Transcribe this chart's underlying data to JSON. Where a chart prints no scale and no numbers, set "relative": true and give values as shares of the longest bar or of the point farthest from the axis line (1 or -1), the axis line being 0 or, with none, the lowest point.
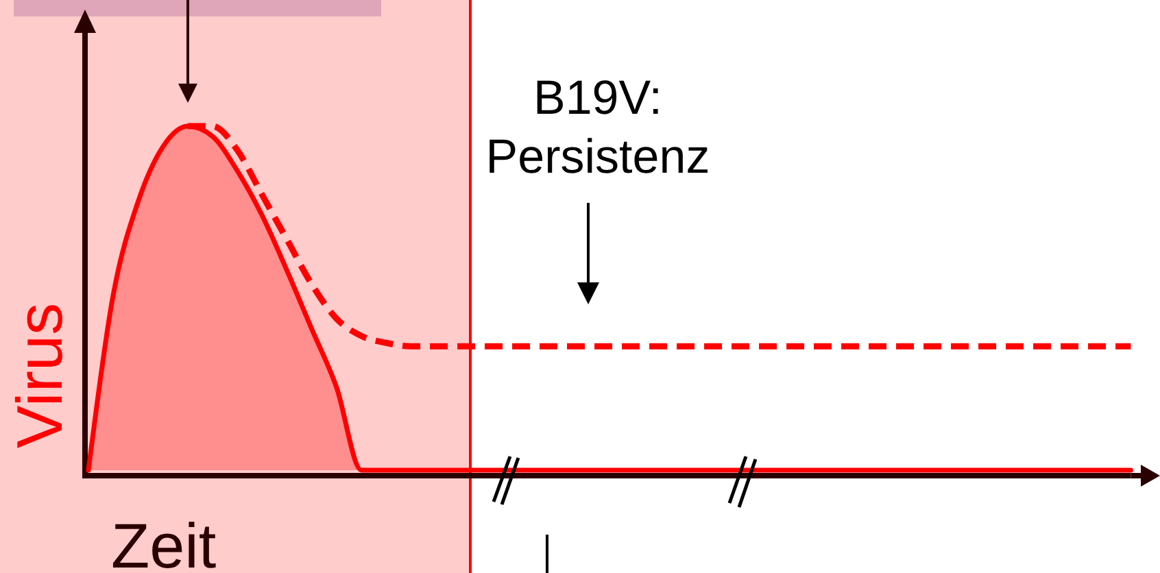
{
  "chart_data": {
    "type": "area",
    "xlabel": "Zeit",
    "ylabel": "Virus",
    "relative": true,
    "categories": [
      null,
      null,
      null,
      null,
      null,
      null,
      null,
      null,
      null,
      null,
      null,
      null,
      null,
      null,
      null,
      null,
      null,
      null,
      null,
      null,
      null,
      null,
      null,
      null,
      null,
      null,
      null,
      null,
      null,
      null,
      null,
      null,
      null,
      null,
      null,
      null,
      null,
      null,
      null,
      null,
      null,
      null,
      null
    ],
    "series": [
      {
        "type": "area",
        "color": "#ff0000",
        "values": [
          0,
          0.51,
          0.78,
          0.94,
          1,
          0.97,
          0.87,
          0.74,
          0.58,
          0.41,
          0.24,
          0,
          0,
          0,
          0,
          0,
          0,
          0,
          0,
          0,
          0,
          0,
          0,
          0,
          0,
          0,
          0,
          0,
          0,
          0,
          0,
          0,
          0,
          0,
          0,
          0,
          0,
          0,
          0,
          0,
          0,
          0,
          0
        ]
      },
      {
        "type": "line",
        "color": "#ff0000",
        "line_style": "dashed",
        "values": [
          null,
          null,
          null,
          null,
          1,
          1,
          0.93,
          0.8,
          0.67,
          0.54,
          0.44,
          0.39,
          0.37,
          0.36,
          0.36,
          0.36,
          0.36,
          0.36,
          0.36,
          0.36,
          0.36,
          0.36,
          0.36,
          0.36,
          0.36,
          0.36,
          0.36,
          0.36,
          0.36,
          0.36,
          0.36,
          0.36,
          0.36,
          0.36,
          0.36,
          0.36,
          0.36,
          0.36,
          0.36,
          0.36,
          0.36,
          0.36,
          0.36
        ]
      }
    ],
    "annotations": [
      "B19V:\nPersistenz"
    ]
  }
}
